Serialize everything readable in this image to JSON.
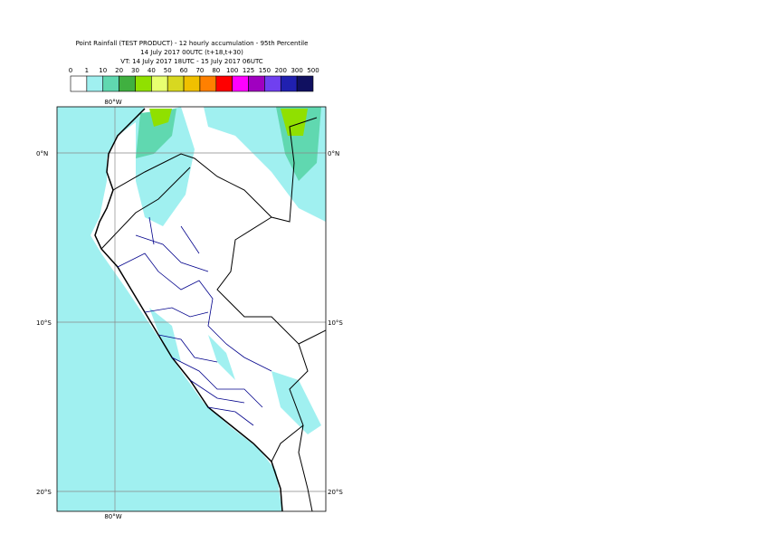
{
  "header": {
    "title_lines": [
      "Point Rainfall (TEST PRODUCT) - 12 hourly accumulation - 95th Percentile",
      "14 July 2017 00UTC (t+18,t+30)",
      "VT: 14 July 2017 18UTC - 15 July 2017 06UTC"
    ]
  },
  "legend": {
    "labels": [
      "0",
      "1",
      "10",
      "20",
      "30",
      "40",
      "50",
      "60",
      "70",
      "80",
      "100",
      "125",
      "150",
      "200",
      "300",
      "500"
    ],
    "colors": [
      "#ffffff",
      "#a0f0f0",
      "#60d8b0",
      "#40b040",
      "#90e000",
      "#e8ff70",
      "#d8d820",
      "#f0c000",
      "#ff8000",
      "#ff0000",
      "#ff00ff",
      "#a000c0",
      "#7040f0",
      "#2020b0",
      "#101060"
    ]
  },
  "map": {
    "lat_labels": [
      "0°N",
      "10°S",
      "20°S"
    ],
    "lon_label_top": "80°W",
    "lon_label_bottom": "80°W"
  }
}
